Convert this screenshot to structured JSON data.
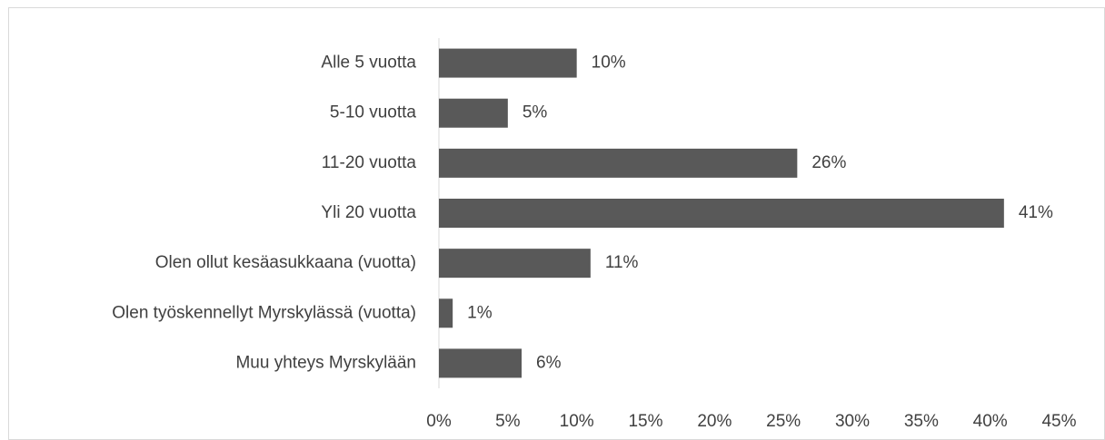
{
  "chart_data": {
    "type": "hbar",
    "categories": [
      "Alle 5 vuotta",
      "5-10 vuotta",
      "11-20 vuotta",
      "Yli 20 vuotta",
      "Olen ollut kesäasukkaana (vuotta)",
      "Olen työskennellyt Myrskylässä (vuotta)",
      "Muu yhteys Myrskylään"
    ],
    "values": [
      10,
      5,
      26,
      41,
      11,
      1,
      6
    ],
    "value_labels": [
      "10%",
      "5%",
      "26%",
      "41%",
      "11%",
      "1%",
      "6%"
    ],
    "color": "#595959",
    "xlim": [
      0,
      45
    ],
    "xticks": [
      {
        "value": 0,
        "label": "0%"
      },
      {
        "value": 5,
        "label": "5%"
      },
      {
        "value": 10,
        "label": "10%"
      },
      {
        "value": 15,
        "label": "15%"
      },
      {
        "value": 20,
        "label": "20%"
      },
      {
        "value": 25,
        "label": "25%"
      },
      {
        "value": 30,
        "label": "30%"
      },
      {
        "value": 35,
        "label": "35%"
      },
      {
        "value": 40,
        "label": "40%"
      },
      {
        "value": 45,
        "label": "45%"
      }
    ],
    "grid": false
  }
}
